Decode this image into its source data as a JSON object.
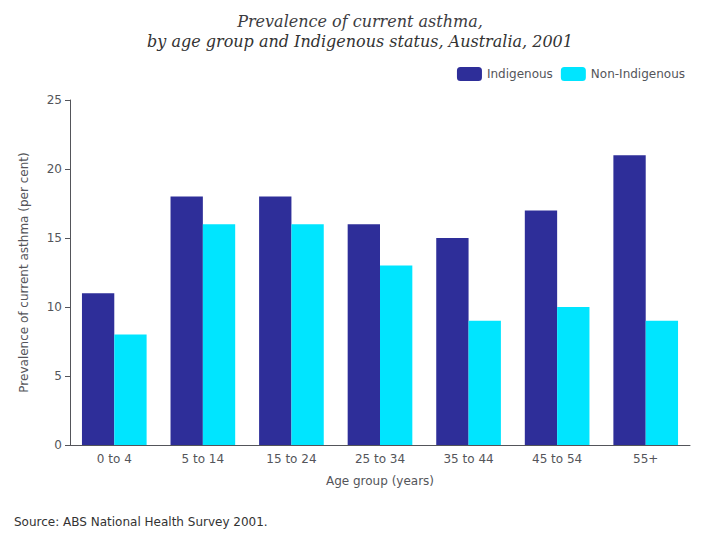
{
  "chart_data": {
    "type": "bar",
    "title": "Prevalence of current asthma,",
    "subtitle": "by age group and Indigenous status, Australia, 2001",
    "xlabel": "Age group (years)",
    "ylabel": "Prevalence of current asthma (per cent)",
    "categories": [
      "0 to 4",
      "5 to 14",
      "15 to 24",
      "25 to 34",
      "35 to 44",
      "45 to 54",
      "55+"
    ],
    "series": [
      {
        "name": "Indigenous",
        "color": "#2e2e99",
        "values": [
          11,
          18,
          18,
          16,
          15,
          17,
          21
        ]
      },
      {
        "name": "Non-Indigenous",
        "color": "#00e5ff",
        "values": [
          8,
          16,
          16,
          13,
          9,
          10,
          9
        ]
      }
    ],
    "ylim": [
      0,
      25
    ],
    "yticks": [
      0,
      5,
      10,
      15,
      20,
      25
    ],
    "grid": false,
    "legend": "upper right",
    "annotations": [
      "Source: ABS National Health Survey 2001."
    ]
  }
}
